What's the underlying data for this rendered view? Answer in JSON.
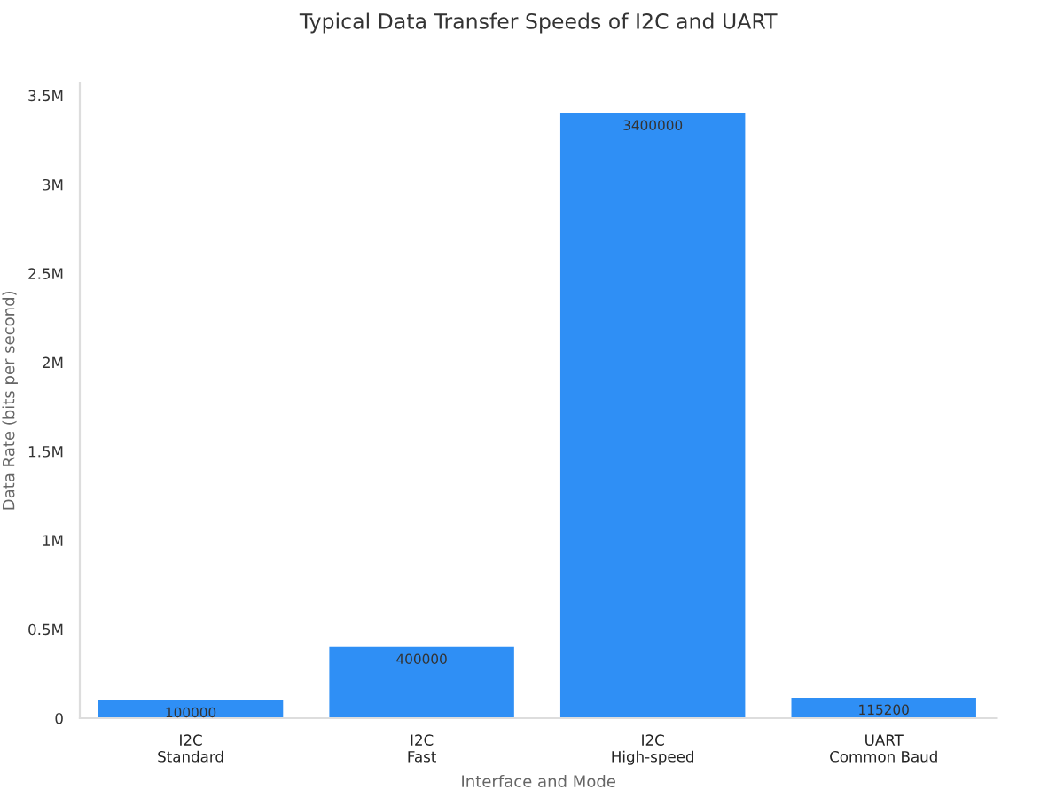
{
  "chart_data": {
    "type": "bar",
    "title": "Typical Data Transfer Speeds of I2C and UART",
    "xlabel": "Interface and Mode",
    "ylabel": "Data Rate (bits per second)",
    "categories": [
      "I2C\nStandard",
      "I2C\nFast",
      "I2C\nHigh-speed",
      "UART\nCommon Baud"
    ],
    "values": [
      100000,
      400000,
      3400000,
      115200
    ],
    "color": "#2f8ff5",
    "ylim": [
      0,
      3570000
    ],
    "yticks": [
      0,
      {
        "value": 500000,
        "label": "0.5M"
      },
      {
        "value": 1000000,
        "label": "1M"
      },
      {
        "value": 1500000,
        "label": "1.5M"
      },
      {
        "value": 2000000,
        "label": "2M"
      },
      {
        "value": 2500000,
        "label": "2.5M"
      },
      {
        "value": 3000000,
        "label": "3M"
      },
      {
        "value": 3500000,
        "label": "3.5M"
      }
    ],
    "data_labels": true,
    "grid": false,
    "legend": false
  }
}
